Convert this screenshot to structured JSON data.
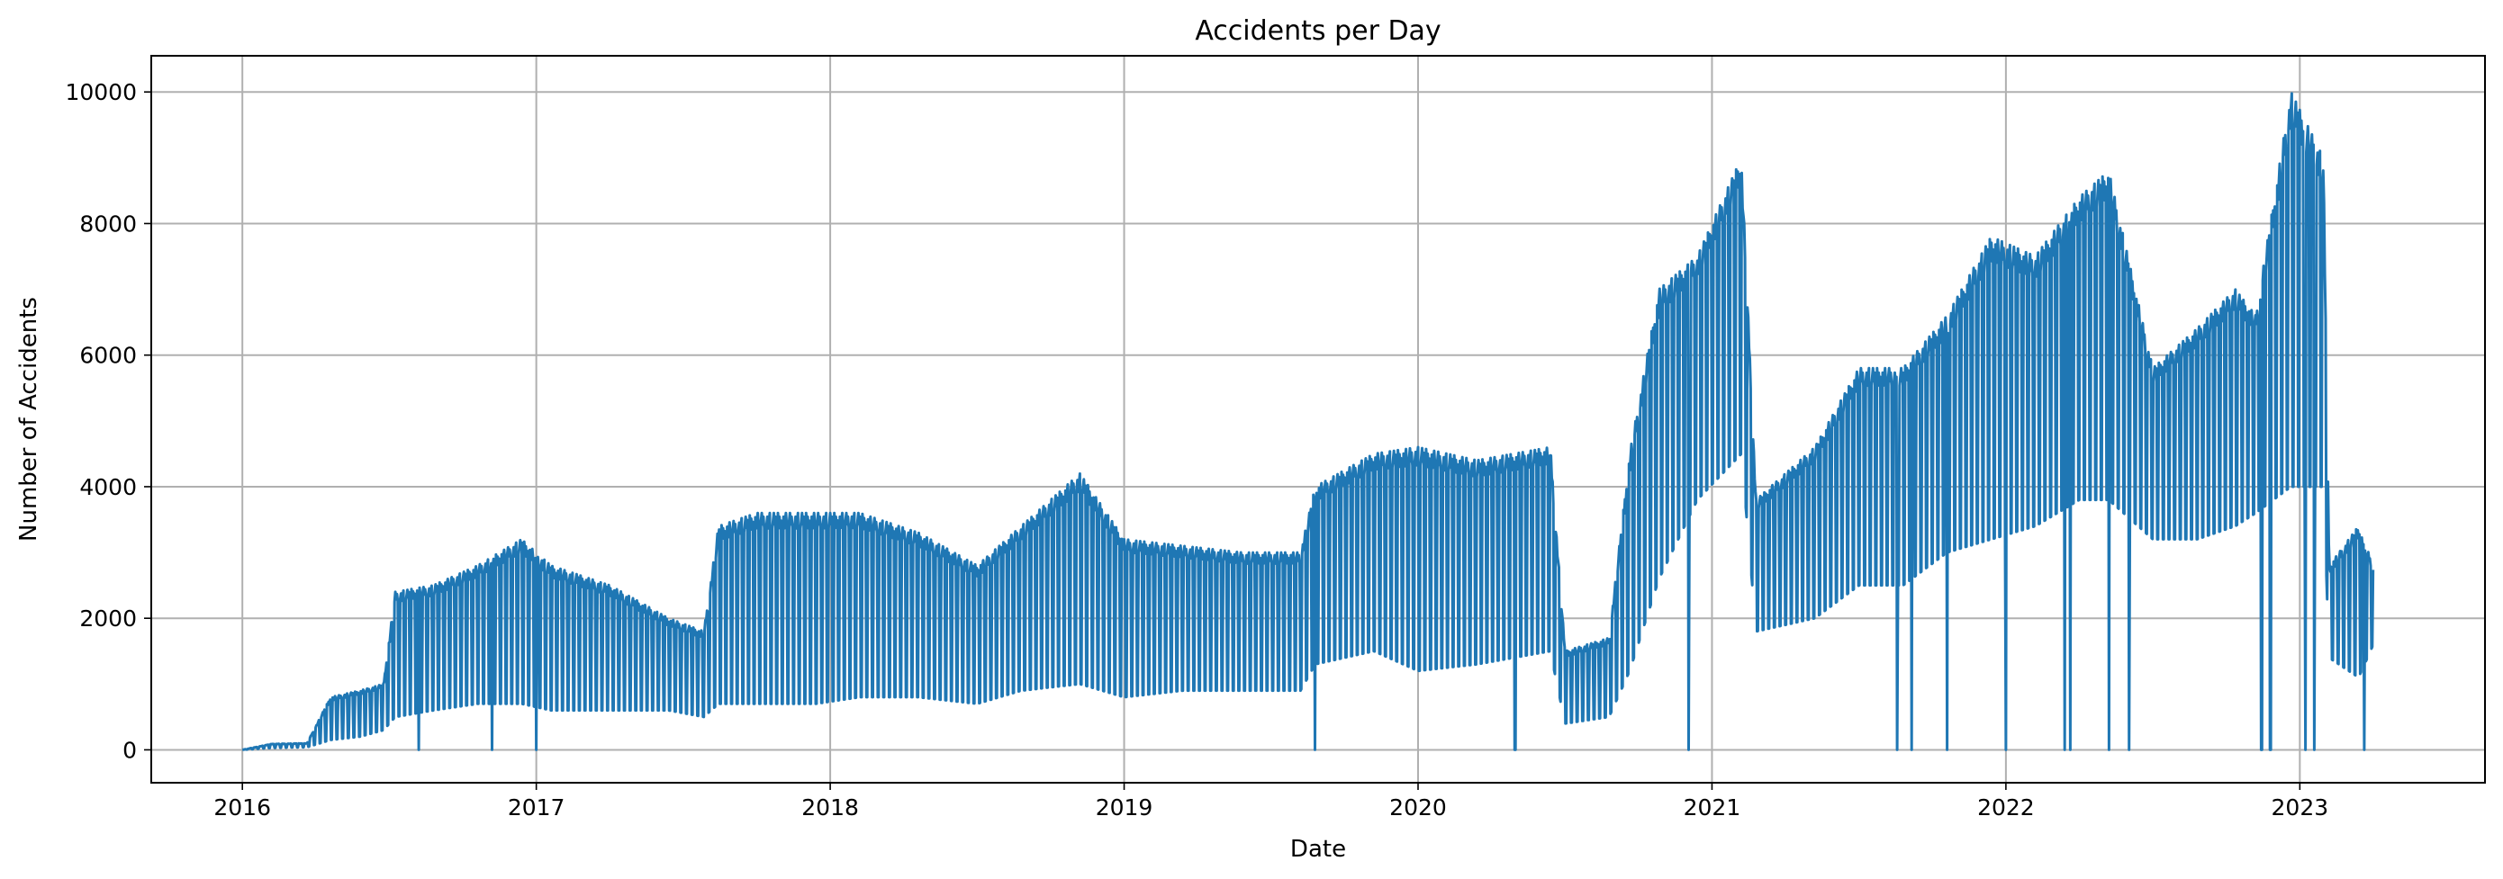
{
  "chart_data": {
    "type": "line",
    "title": "Accidents per Day",
    "xlabel": "Date",
    "ylabel": "Number of Accidents",
    "xlim": [
      2015.69,
      2023.63
    ],
    "ylim": [
      -500,
      10550
    ],
    "grid": true,
    "line_color": "#1f77b4",
    "x_ticks": [
      2016,
      2017,
      2018,
      2019,
      2020,
      2021,
      2022,
      2023
    ],
    "x_tick_labels": [
      "2016",
      "2017",
      "2018",
      "2019",
      "2020",
      "2021",
      "2022",
      "2023"
    ],
    "y_ticks": [
      0,
      2000,
      4000,
      6000,
      8000,
      10000
    ],
    "y_tick_labels": [
      "0",
      "2000",
      "4000",
      "6000",
      "8000",
      "10000"
    ],
    "series": [
      {
        "name": "Accidents per Day",
        "note": "daily counts with strong weekday/weekend oscillation; values below are [decimal-year, low, high] envelope estimates read from the plot",
        "envelope": [
          [
            2016.0,
            0,
            0
          ],
          [
            2016.1,
            30,
            90
          ],
          [
            2016.22,
            40,
            100
          ],
          [
            2016.3,
            150,
            800
          ],
          [
            2016.4,
            200,
            900
          ],
          [
            2016.48,
            300,
            1000
          ],
          [
            2016.52,
            500,
            2400
          ],
          [
            2016.65,
            600,
            2500
          ],
          [
            2016.8,
            700,
            2800
          ],
          [
            2016.95,
            700,
            3200
          ],
          [
            2017.05,
            600,
            2800
          ],
          [
            2017.25,
            600,
            2500
          ],
          [
            2017.45,
            600,
            2000
          ],
          [
            2017.57,
            500,
            1800
          ],
          [
            2017.62,
            700,
            3400
          ],
          [
            2017.75,
            700,
            3600
          ],
          [
            2017.95,
            700,
            3600
          ],
          [
            2018.1,
            800,
            3600
          ],
          [
            2018.3,
            800,
            3300
          ],
          [
            2018.5,
            700,
            2800
          ],
          [
            2018.65,
            900,
            3400
          ],
          [
            2018.85,
            1000,
            4200
          ],
          [
            2019.0,
            800,
            3200
          ],
          [
            2019.2,
            900,
            3100
          ],
          [
            2019.4,
            900,
            3000
          ],
          [
            2019.6,
            900,
            3000
          ],
          [
            2019.65,
            1300,
            4000
          ],
          [
            2019.85,
            1500,
            4500
          ],
          [
            2020.0,
            1200,
            4600
          ],
          [
            2020.2,
            1300,
            4400
          ],
          [
            2020.45,
            1500,
            4600
          ],
          [
            2020.5,
            400,
            1500
          ],
          [
            2020.65,
            500,
            1700
          ],
          [
            2020.72,
            1200,
            4500
          ],
          [
            2020.82,
            2600,
            7000
          ],
          [
            2020.95,
            3800,
            7500
          ],
          [
            2021.1,
            4500,
            9000
          ],
          [
            2021.15,
            1800,
            3800
          ],
          [
            2021.35,
            2000,
            4600
          ],
          [
            2021.5,
            2500,
            5800
          ],
          [
            2021.65,
            2500,
            5800
          ],
          [
            2021.8,
            3000,
            6600
          ],
          [
            2021.95,
            3200,
            7800
          ],
          [
            2022.1,
            3400,
            7500
          ],
          [
            2022.25,
            3800,
            8400
          ],
          [
            2022.35,
            3800,
            8800
          ],
          [
            2022.5,
            3200,
            5800
          ],
          [
            2022.65,
            3200,
            6400
          ],
          [
            2022.78,
            3400,
            7000
          ],
          [
            2022.85,
            3600,
            6600
          ],
          [
            2022.97,
            4000,
            10000
          ],
          [
            2023.08,
            4000,
            9000
          ],
          [
            2023.1,
            1400,
            2800
          ],
          [
            2023.2,
            1100,
            3400
          ],
          [
            2023.25,
            1600,
            2800
          ]
        ],
        "dips_to_zero": [
          2016.6,
          2016.85,
          2017.0,
          2019.65,
          2020.33,
          2020.92,
          2021.63,
          2021.68,
          2021.8,
          2022.0,
          2022.2,
          2022.22,
          2022.35,
          2022.42,
          2022.87,
          2022.9,
          2023.02,
          2023.05,
          2023.22
        ]
      }
    ]
  }
}
